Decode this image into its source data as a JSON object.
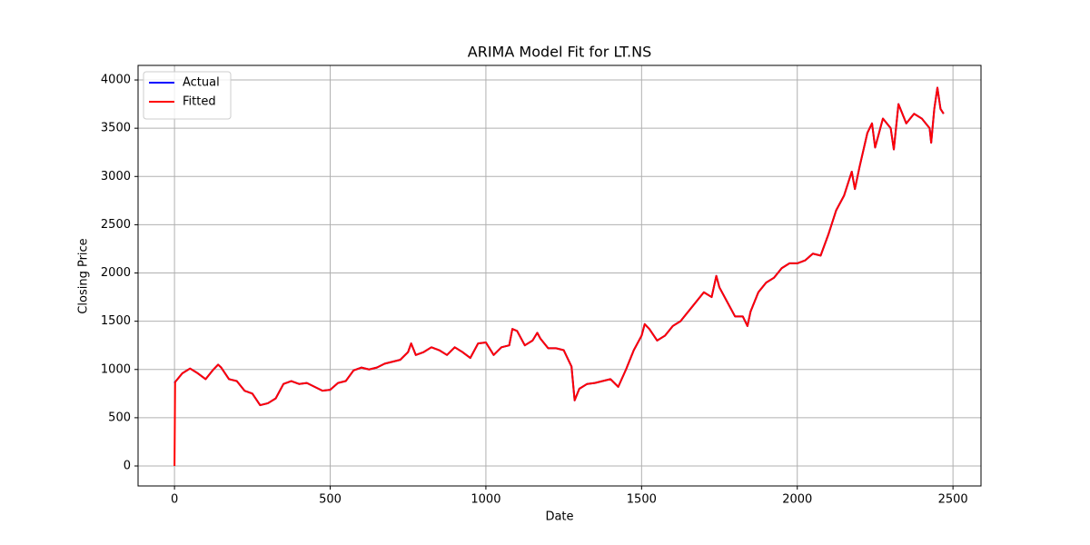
{
  "chart_data": {
    "type": "line",
    "title": "ARIMA Model Fit for LT.NS",
    "x_label": "Date",
    "y_label": "Closing Price",
    "x": [
      0,
      2,
      25,
      50,
      75,
      100,
      125,
      140,
      150,
      175,
      200,
      225,
      250,
      275,
      300,
      325,
      350,
      375,
      400,
      425,
      450,
      475,
      500,
      525,
      550,
      575,
      600,
      625,
      650,
      675,
      700,
      725,
      750,
      760,
      775,
      800,
      825,
      850,
      875,
      900,
      925,
      950,
      975,
      1000,
      1025,
      1050,
      1075,
      1085,
      1100,
      1125,
      1150,
      1165,
      1175,
      1200,
      1225,
      1250,
      1275,
      1285,
      1300,
      1325,
      1350,
      1375,
      1400,
      1425,
      1450,
      1475,
      1500,
      1510,
      1525,
      1550,
      1575,
      1600,
      1625,
      1650,
      1675,
      1700,
      1725,
      1740,
      1750,
      1775,
      1800,
      1825,
      1840,
      1850,
      1875,
      1900,
      1925,
      1950,
      1975,
      2000,
      2025,
      2050,
      2075,
      2100,
      2125,
      2150,
      2175,
      2185,
      2200,
      2225,
      2240,
      2250,
      2275,
      2300,
      2310,
      2325,
      2350,
      2375,
      2400,
      2425,
      2430,
      2440,
      2450,
      2460,
      2470
    ],
    "series": [
      {
        "name": "Actual",
        "color": "#0000ff",
        "values": [
          860,
          870,
          960,
          1010,
          960,
          900,
          1000,
          1050,
          1020,
          900,
          880,
          780,
          750,
          630,
          650,
          700,
          850,
          880,
          850,
          860,
          820,
          780,
          790,
          860,
          880,
          990,
          1020,
          1000,
          1020,
          1060,
          1080,
          1100,
          1180,
          1270,
          1150,
          1180,
          1230,
          1200,
          1150,
          1230,
          1180,
          1120,
          1270,
          1280,
          1150,
          1230,
          1250,
          1420,
          1400,
          1250,
          1300,
          1380,
          1320,
          1220,
          1220,
          1200,
          1030,
          680,
          800,
          850,
          860,
          880,
          900,
          820,
          1000,
          1200,
          1350,
          1470,
          1420,
          1300,
          1350,
          1450,
          1500,
          1600,
          1700,
          1800,
          1750,
          1970,
          1850,
          1700,
          1550,
          1550,
          1450,
          1600,
          1800,
          1900,
          1950,
          2050,
          2100,
          2100,
          2130,
          2200,
          2180,
          2400,
          2650,
          2800,
          3050,
          2870,
          3100,
          3450,
          3550,
          3300,
          3600,
          3500,
          3280,
          3750,
          3550,
          3650,
          3600,
          3500,
          3350,
          3700,
          3920,
          3700,
          3650
        ]
      },
      {
        "name": "Fitted",
        "color": "#ff0000",
        "values": [
          0,
          870,
          960,
          1010,
          960,
          900,
          1000,
          1050,
          1020,
          900,
          880,
          780,
          750,
          630,
          650,
          700,
          850,
          880,
          850,
          860,
          820,
          780,
          790,
          860,
          880,
          990,
          1020,
          1000,
          1020,
          1060,
          1080,
          1100,
          1180,
          1270,
          1150,
          1180,
          1230,
          1200,
          1150,
          1230,
          1180,
          1120,
          1270,
          1280,
          1150,
          1230,
          1250,
          1420,
          1400,
          1250,
          1300,
          1380,
          1320,
          1220,
          1220,
          1200,
          1030,
          680,
          800,
          850,
          860,
          880,
          900,
          820,
          1000,
          1200,
          1350,
          1470,
          1420,
          1300,
          1350,
          1450,
          1500,
          1600,
          1700,
          1800,
          1750,
          1970,
          1850,
          1700,
          1550,
          1550,
          1450,
          1600,
          1800,
          1900,
          1950,
          2050,
          2100,
          2100,
          2130,
          2200,
          2180,
          2400,
          2650,
          2800,
          3050,
          2870,
          3100,
          3450,
          3550,
          3300,
          3600,
          3500,
          3280,
          3750,
          3550,
          3650,
          3600,
          3500,
          3350,
          3700,
          3920,
          3700,
          3650
        ]
      }
    ],
    "xlim": [
      -117,
      2590
    ],
    "xticks": [
      0,
      500,
      1000,
      1500,
      2000,
      2500
    ],
    "ylim": [
      -207,
      4151
    ],
    "yticks": [
      0,
      500,
      1000,
      1500,
      2000,
      2500,
      3000,
      3500,
      4000
    ],
    "grid": true,
    "legend": "upper left"
  }
}
